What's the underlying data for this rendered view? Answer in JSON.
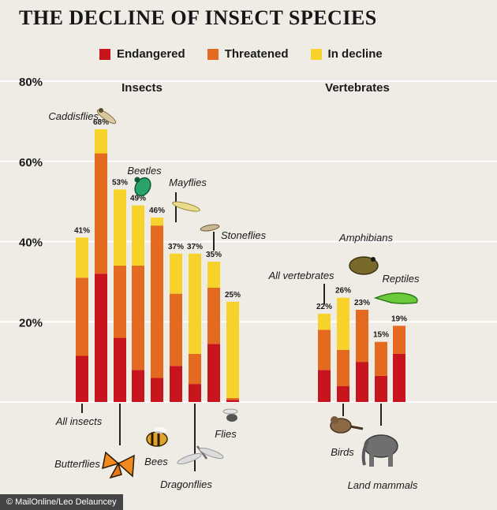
{
  "title": "THE DECLINE OF INSECT SPECIES",
  "credit": "© MailOnline/Leo Delauncey",
  "colors": {
    "endangered": "#c8141c",
    "threatened": "#e36a1e",
    "in_decline": "#f7d22a",
    "background": "#efece6",
    "gridline": "#ffffff"
  },
  "legend": [
    {
      "label": "Endangered",
      "color": "#c8141c"
    },
    {
      "label": "Threatened",
      "color": "#e36a1e"
    },
    {
      "label": "In decline",
      "color": "#f7d22a"
    }
  ],
  "chart_data": {
    "type": "bar",
    "stacked": true,
    "ylim": [
      0,
      80
    ],
    "yticks": [
      "20%",
      "40%",
      "60%",
      "80%"
    ],
    "ytick_values": [
      20,
      40,
      60,
      80
    ],
    "grid": true,
    "legend_position": "top",
    "groups": [
      {
        "label": "Insects",
        "categories": [
          "All insects",
          "Caddisflies",
          "Butterflies",
          "Beetles",
          "Bees",
          "Mayflies",
          "Dragonflies",
          "Stoneflies",
          "Flies"
        ]
      },
      {
        "label": "Vertebrates",
        "categories": [
          "All vertebrates",
          "Birds",
          "Amphibians",
          "Land mammals",
          "Reptiles"
        ]
      }
    ],
    "categories": [
      "All insects",
      "Caddisflies",
      "Butterflies",
      "Beetles",
      "Bees",
      "Mayflies",
      "Dragonflies",
      "Stoneflies",
      "Flies",
      "All vertebrates",
      "Birds",
      "Amphibians",
      "Land mammals",
      "Reptiles"
    ],
    "series": [
      {
        "name": "Endangered",
        "values": [
          11.5,
          32,
          16,
          8,
          6,
          9,
          4.5,
          14.5,
          0.5,
          8,
          4,
          10,
          6.5,
          12
        ]
      },
      {
        "name": "Threatened",
        "values": [
          19.5,
          30,
          18,
          26,
          38,
          18,
          7.5,
          14,
          0.5,
          10,
          9,
          13,
          8.5,
          7
        ]
      },
      {
        "name": "In decline",
        "values": [
          10,
          6,
          19,
          15,
          2,
          10,
          25,
          6.5,
          24,
          4,
          13,
          0,
          0,
          0
        ]
      }
    ],
    "totals": [
      "41%",
      "68%",
      "53%",
      "49%",
      "46%",
      "37%",
      "37%",
      "35%",
      "25%",
      "22%",
      "26%",
      "23%",
      "15%",
      "19%"
    ]
  }
}
